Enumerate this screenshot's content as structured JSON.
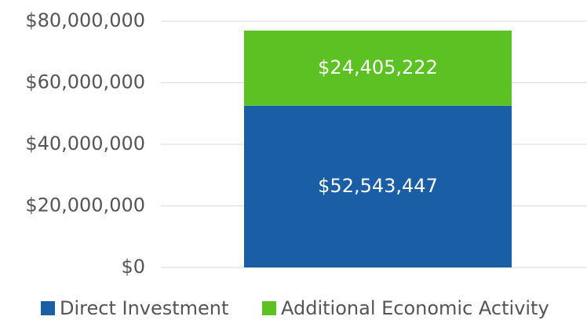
{
  "chart_data": {
    "type": "stacked_bar",
    "categories": [
      null
    ],
    "series": [
      {
        "name": "Direct Investment",
        "color": "#1a5ea5",
        "values": [
          52543447
        ],
        "value_labels": [
          "$52,543,447"
        ]
      },
      {
        "name": "Additional Economic Activity",
        "color": "#5cc122",
        "values": [
          24405222
        ],
        "value_labels": [
          "$24,405,222"
        ]
      }
    ],
    "ylim": [
      0,
      80000000
    ],
    "yticks": [
      {
        "value": 0,
        "label": "$0"
      },
      {
        "value": 20000000,
        "label": "$20,000,000"
      },
      {
        "value": 40000000,
        "label": "$40,000,000"
      },
      {
        "value": 60000000,
        "label": "$60,000,000"
      },
      {
        "value": 80000000,
        "label": "$80,000,000"
      }
    ],
    "grid": true,
    "legend": "bottom"
  }
}
